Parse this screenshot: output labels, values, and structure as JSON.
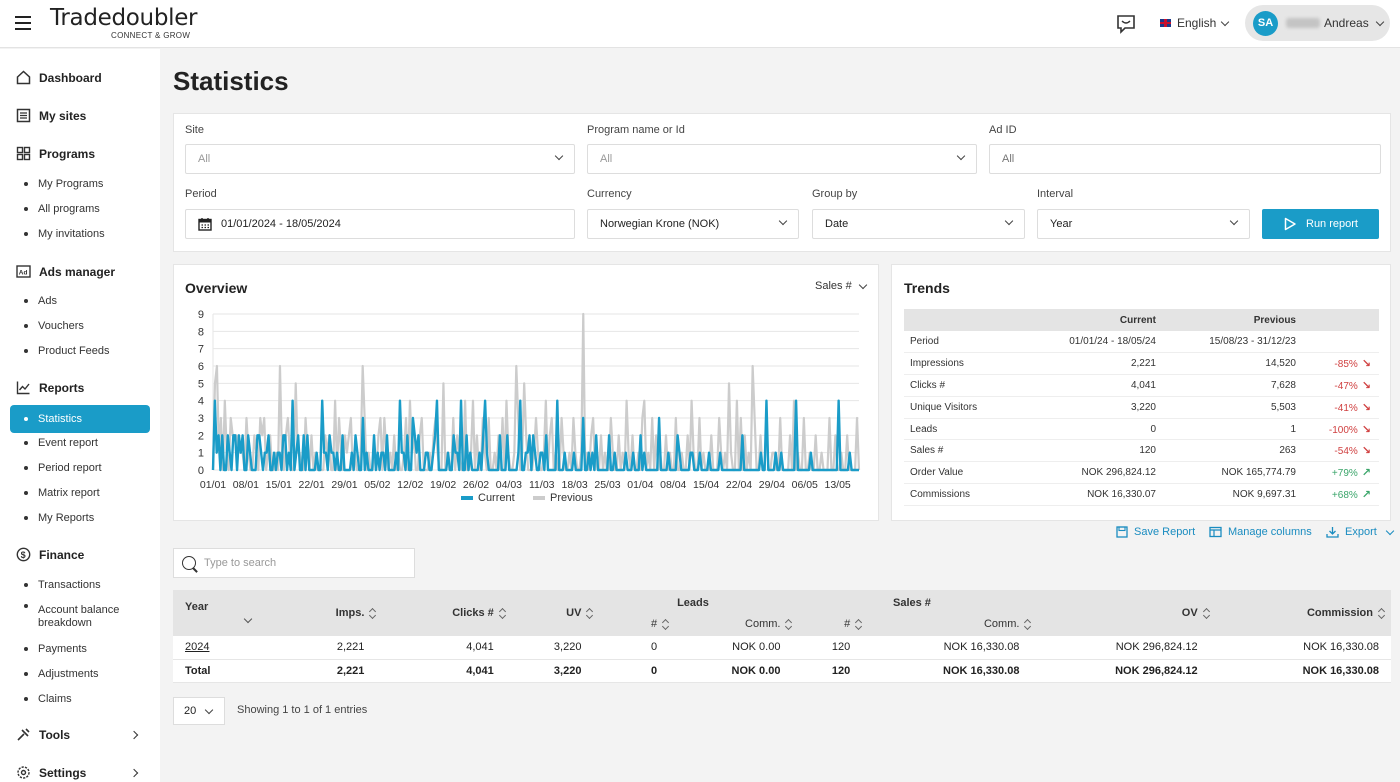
{
  "brand": {
    "name": "Tradedoubler",
    "tagline": "CONNECT & GROW"
  },
  "header": {
    "language": "English",
    "user_initials": "SA",
    "user_name": "Andreas"
  },
  "sidebar": {
    "dashboard": "Dashboard",
    "my_sites": "My sites",
    "programs": "Programs",
    "programs_items": [
      "My Programs",
      "All programs",
      "My invitations"
    ],
    "ads_manager": "Ads manager",
    "ads_items": [
      "Ads",
      "Vouchers",
      "Product Feeds"
    ],
    "reports": "Reports",
    "reports_active": "Statistics",
    "reports_items": [
      "Event report",
      "Period report",
      "Matrix report",
      "My Reports"
    ],
    "finance": "Finance",
    "finance_items": [
      "Transactions",
      "Account balance breakdown",
      "Payments",
      "Adjustments",
      "Claims"
    ],
    "tools": "Tools",
    "settings": "Settings"
  },
  "page": {
    "title": "Statistics"
  },
  "filters": {
    "site_label": "Site",
    "site_value": "All",
    "program_label": "Program name or Id",
    "program_value": "All",
    "adid_label": "Ad ID",
    "adid_placeholder": "All",
    "period_label": "Period",
    "period_value": "01/01/2024 - 18/05/2024",
    "currency_label": "Currency",
    "currency_value": "Norwegian Krone (NOK)",
    "groupby_label": "Group by",
    "groupby_value": "Date",
    "interval_label": "Interval",
    "interval_value": "Year",
    "run_button": "Run report"
  },
  "overview": {
    "title": "Overview",
    "metric_select": "Sales #"
  },
  "chart_data": {
    "type": "line",
    "title": "",
    "x_tick_labels": [
      "01/01",
      "08/01",
      "15/01",
      "22/01",
      "29/01",
      "05/02",
      "12/02",
      "19/02",
      "26/02",
      "04/03",
      "11/03",
      "18/03",
      "25/03",
      "01/04",
      "08/04",
      "15/04",
      "22/04",
      "29/04",
      "06/05",
      "13/05"
    ],
    "ylim": [
      0,
      9
    ],
    "y_ticks": [
      0,
      1,
      2,
      3,
      4,
      5,
      6,
      7,
      8,
      9
    ],
    "grid": true,
    "legend_position": "bottom",
    "series": [
      {
        "name": "Current",
        "color": "#1a9cc8",
        "values": [
          0,
          4,
          1,
          2,
          0,
          2,
          0,
          0,
          2,
          1,
          0,
          2,
          2,
          0,
          2,
          1,
          2,
          0,
          0,
          2,
          1,
          0,
          0,
          0,
          2,
          2,
          1,
          0,
          1,
          1,
          2,
          0,
          0,
          1,
          0,
          1,
          1,
          0,
          2,
          2,
          0,
          1,
          0,
          4,
          0,
          1,
          2,
          0,
          0,
          2,
          0,
          2,
          0,
          0,
          0,
          0,
          1,
          0,
          0,
          4,
          1,
          1,
          0,
          2,
          1,
          1,
          0,
          1,
          0,
          0,
          2,
          0,
          0,
          0,
          0,
          1,
          0,
          2,
          1,
          0,
          0,
          3,
          0,
          1,
          0,
          0,
          0,
          2,
          0,
          1,
          0,
          1,
          1,
          0,
          2,
          0,
          0,
          0,
          0,
          1,
          0,
          4,
          1,
          1,
          0,
          2,
          0,
          0,
          3,
          2,
          1,
          2,
          0,
          0,
          0,
          1,
          1,
          0,
          0,
          1,
          2,
          4,
          0,
          0,
          0,
          0,
          0,
          1,
          0,
          0,
          2,
          1,
          1,
          0,
          4,
          0,
          0,
          2,
          0,
          1,
          0,
          0,
          0,
          0,
          1,
          0,
          2,
          4,
          1,
          0,
          0,
          0,
          0,
          0,
          0,
          2,
          0,
          0,
          0,
          2,
          0,
          0,
          0,
          0,
          0,
          1,
          4,
          0,
          0,
          1,
          1,
          2,
          0,
          2,
          1,
          0,
          0,
          1,
          1,
          0,
          2,
          0,
          0,
          0,
          0,
          0,
          4,
          0,
          0,
          0,
          1,
          0,
          0,
          0,
          0,
          1,
          0,
          0,
          0,
          0,
          3,
          0,
          0,
          1,
          0,
          1,
          0,
          2,
          0,
          0,
          0,
          0,
          0,
          0,
          2,
          0,
          0,
          1,
          0,
          0,
          0,
          0,
          0,
          1,
          0,
          0,
          0,
          1,
          0,
          0,
          0,
          2,
          0,
          1,
          0,
          0,
          0,
          0,
          0,
          0,
          0,
          3,
          0,
          0,
          0,
          0,
          1,
          0,
          0,
          0,
          0,
          2,
          1,
          0,
          0,
          0,
          0,
          0,
          1,
          1,
          0,
          0,
          0,
          1,
          0,
          0,
          0,
          0,
          1,
          0,
          0,
          0,
          0,
          0,
          1,
          0,
          0,
          0,
          0,
          0,
          0,
          0,
          0,
          0,
          0,
          0,
          2,
          0,
          0,
          0,
          0,
          0,
          0,
          0,
          0,
          0,
          1,
          0,
          0,
          4,
          0,
          0,
          0,
          0,
          1,
          0,
          0,
          1,
          0,
          0,
          0,
          0,
          0,
          0,
          0,
          4,
          0,
          0,
          0,
          0,
          0,
          0,
          0,
          1,
          0,
          0,
          0,
          0,
          0,
          0,
          0,
          0,
          0,
          0,
          0,
          0,
          0,
          0,
          4,
          0,
          0,
          0,
          0,
          0,
          1,
          0,
          0,
          0,
          0,
          0
        ]
      },
      {
        "name": "Previous",
        "color": "#cccccc",
        "values": [
          0,
          5,
          6,
          1,
          3,
          0,
          4,
          1,
          0,
          3,
          2,
          2,
          2,
          1,
          1,
          1,
          0,
          3,
          1,
          0,
          0,
          2,
          1,
          0,
          3,
          2,
          3,
          0,
          1,
          2,
          0,
          0,
          1,
          0,
          6,
          1,
          0,
          2,
          3,
          1,
          0,
          0,
          5,
          1,
          1,
          0,
          0,
          3,
          1,
          0,
          2,
          0,
          1,
          0,
          0,
          0,
          0,
          2,
          1,
          2,
          0,
          0,
          4,
          0,
          3,
          1,
          0,
          2,
          1,
          2,
          3,
          0,
          1,
          0,
          0,
          1,
          6,
          3,
          0,
          1,
          0,
          0,
          1,
          0,
          2,
          3,
          0,
          3,
          1,
          0,
          1,
          0,
          2,
          0,
          1,
          0,
          0,
          1,
          3,
          0,
          4,
          1,
          2,
          0,
          0,
          2,
          3,
          0,
          0,
          0,
          1,
          0,
          2,
          3,
          1,
          0,
          0,
          5,
          0,
          1,
          0,
          0,
          3,
          0,
          2,
          1,
          0,
          0,
          4,
          0,
          0,
          1,
          4,
          0,
          2,
          0,
          0,
          3,
          1,
          0,
          3,
          0,
          0,
          1,
          0,
          2,
          0,
          3,
          0,
          4,
          1,
          0,
          0,
          1,
          6,
          3,
          0,
          1,
          5,
          2,
          0,
          0,
          0,
          1,
          3,
          1,
          0,
          0,
          1,
          4,
          0,
          2,
          3,
          0,
          1,
          0,
          0,
          3,
          1,
          0,
          0,
          1,
          0,
          3,
          1,
          0,
          0,
          1,
          9,
          0,
          1,
          0,
          2,
          3,
          0,
          1,
          0,
          2,
          0,
          1,
          0,
          0,
          3,
          1,
          0,
          0,
          2,
          0,
          1,
          0,
          4,
          1,
          0,
          2,
          0,
          0,
          1,
          0,
          3,
          4,
          0,
          1,
          0,
          3,
          0,
          2,
          0,
          1,
          0,
          0,
          2,
          0,
          1,
          0,
          0,
          3,
          0,
          0,
          1,
          0,
          0,
          2,
          0,
          4,
          1,
          0,
          0,
          3,
          0,
          1,
          0,
          0,
          0,
          2,
          0,
          0,
          0,
          3,
          1,
          0,
          1,
          0,
          5,
          1,
          0,
          0,
          4,
          0,
          3,
          0,
          2,
          0,
          1,
          0,
          6,
          3,
          0,
          0,
          2,
          0,
          0,
          3,
          0,
          0,
          1,
          1,
          0,
          0,
          3,
          0,
          0,
          0,
          0,
          2,
          0,
          4,
          0,
          1,
          0,
          0,
          3,
          0,
          0,
          1,
          0,
          0,
          2,
          0,
          0,
          1,
          0,
          0,
          0,
          3,
          0,
          0,
          2,
          0,
          0,
          1,
          0,
          0,
          2,
          0,
          0,
          0,
          0,
          3,
          0
        ]
      }
    ]
  },
  "trends": {
    "title": "Trends",
    "header": [
      "",
      "Current",
      "Previous",
      ""
    ],
    "rows": [
      {
        "label": "Period",
        "current": "01/01/24 - 18/05/24",
        "previous": "15/08/23 - 31/12/23",
        "change": "",
        "dir": ""
      },
      {
        "label": "Impressions",
        "current": "2,221",
        "previous": "14,520",
        "change": "-85%",
        "dir": "down"
      },
      {
        "label": "Clicks #",
        "current": "4,041",
        "previous": "7,628",
        "change": "-47%",
        "dir": "down"
      },
      {
        "label": "Unique Visitors",
        "current": "3,220",
        "previous": "5,503",
        "change": "-41%",
        "dir": "down"
      },
      {
        "label": "Leads",
        "current": "0",
        "previous": "1",
        "change": "-100%",
        "dir": "down"
      },
      {
        "label": "Sales #",
        "current": "120",
        "previous": "263",
        "change": "-54%",
        "dir": "down"
      },
      {
        "label": "Order Value",
        "current": "NOK 296,824.12",
        "previous": "NOK 165,774.79",
        "change": "+79%",
        "dir": "up"
      },
      {
        "label": "Commissions",
        "current": "NOK 16,330.07",
        "previous": "NOK 9,697.31",
        "change": "+68%",
        "dir": "up"
      }
    ]
  },
  "actions": {
    "save": "Save Report",
    "manage": "Manage columns",
    "export": "Export"
  },
  "search": {
    "placeholder": "Type to search"
  },
  "table": {
    "group_leads": "Leads",
    "group_sales": "Sales #",
    "col_year": "Year",
    "col_imps": "Imps.",
    "col_clicks": "Clicks #",
    "col_uv": "UV",
    "col_leads_n": "#",
    "col_leads_comm": "Comm.",
    "col_sales_n": "#",
    "col_sales_comm": "Comm.",
    "col_ov": "OV",
    "col_commission": "Commission",
    "rows": [
      [
        "2024",
        "2,221",
        "4,041",
        "3,220",
        "0",
        "NOK 0.00",
        "120",
        "NOK 16,330.08",
        "NOK 296,824.12",
        "NOK 16,330.08"
      ]
    ],
    "total": [
      "Total",
      "2,221",
      "4,041",
      "3,220",
      "0",
      "NOK 0.00",
      "120",
      "NOK 16,330.08",
      "NOK 296,824.12",
      "NOK 16,330.08"
    ]
  },
  "pagination": {
    "page_size": "20",
    "showing": "Showing 1 to 1 of 1 entries"
  }
}
